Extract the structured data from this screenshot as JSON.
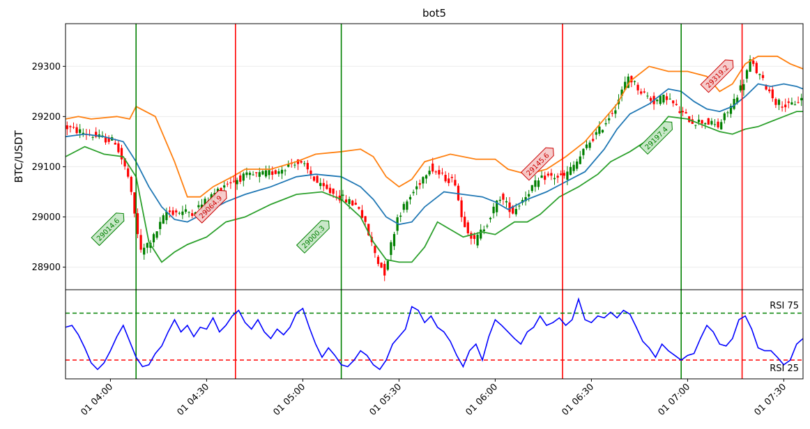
{
  "chart_data": {
    "type": "candlestick",
    "title": "bot5",
    "ylabel": "BTC/USDT",
    "xlabel": "",
    "ylim": [
      28855,
      29385
    ],
    "yticks": [
      28900,
      29000,
      29100,
      29200,
      29300
    ],
    "xlim": [
      0,
      230
    ],
    "grid": true,
    "xticks": [
      {
        "label": "01 04:00",
        "x": 14
      },
      {
        "label": "01 04:30",
        "x": 44
      },
      {
        "label": "01 05:00",
        "x": 74
      },
      {
        "label": "01 05:30",
        "x": 104
      },
      {
        "label": "01 06:00",
        "x": 134
      },
      {
        "label": "01 06:30",
        "x": 164
      },
      {
        "label": "01 07:00",
        "x": 194
      },
      {
        "label": "01 07:30",
        "x": 224
      }
    ],
    "candle_count": 230,
    "price_path": [
      [
        0,
        29180
      ],
      [
        10,
        29160
      ],
      [
        16,
        29150
      ],
      [
        20,
        29080
      ],
      [
        24,
        28930
      ],
      [
        28,
        28960
      ],
      [
        32,
        29010
      ],
      [
        40,
        29010
      ],
      [
        44,
        29030
      ],
      [
        50,
        29065
      ],
      [
        56,
        29080
      ],
      [
        62,
        29085
      ],
      [
        66,
        29090
      ],
      [
        72,
        29110
      ],
      [
        75,
        29100
      ],
      [
        80,
        29060
      ],
      [
        86,
        29040
      ],
      [
        92,
        29020
      ],
      [
        98,
        28910
      ],
      [
        100,
        28890
      ],
      [
        104,
        29000
      ],
      [
        108,
        29040
      ],
      [
        114,
        29100
      ],
      [
        118,
        29080
      ],
      [
        122,
        29070
      ],
      [
        124,
        29000
      ],
      [
        128,
        28950
      ],
      [
        132,
        28990
      ],
      [
        136,
        29040
      ],
      [
        140,
        29010
      ],
      [
        146,
        29060
      ],
      [
        150,
        29080
      ],
      [
        156,
        29080
      ],
      [
        160,
        29110
      ],
      [
        164,
        29150
      ],
      [
        168,
        29180
      ],
      [
        172,
        29220
      ],
      [
        176,
        29280
      ],
      [
        180,
        29250
      ],
      [
        184,
        29230
      ],
      [
        188,
        29240
      ],
      [
        192,
        29210
      ],
      [
        196,
        29190
      ],
      [
        200,
        29190
      ],
      [
        204,
        29180
      ],
      [
        208,
        29220
      ],
      [
        212,
        29270
      ],
      [
        214,
        29310
      ],
      [
        218,
        29270
      ],
      [
        222,
        29230
      ],
      [
        226,
        29220
      ],
      [
        230,
        29235
      ]
    ],
    "series": [
      {
        "name": "",
        "color": "#ff7f0e",
        "role": "upper band",
        "points": [
          [
            0,
            29195
          ],
          [
            4,
            29200
          ],
          [
            8,
            29195
          ],
          [
            16,
            29200
          ],
          [
            20,
            29195
          ],
          [
            22,
            29220
          ],
          [
            28,
            29200
          ],
          [
            34,
            29110
          ],
          [
            38,
            29040
          ],
          [
            42,
            29040
          ],
          [
            46,
            29060
          ],
          [
            52,
            29080
          ],
          [
            56,
            29095
          ],
          [
            64,
            29095
          ],
          [
            72,
            29110
          ],
          [
            78,
            29125
          ],
          [
            86,
            29130
          ],
          [
            92,
            29135
          ],
          [
            96,
            29120
          ],
          [
            100,
            29080
          ],
          [
            104,
            29060
          ],
          [
            108,
            29075
          ],
          [
            112,
            29110
          ],
          [
            120,
            29125
          ],
          [
            128,
            29115
          ],
          [
            134,
            29115
          ],
          [
            138,
            29095
          ],
          [
            144,
            29085
          ],
          [
            150,
            29095
          ],
          [
            156,
            29120
          ],
          [
            162,
            29150
          ],
          [
            168,
            29195
          ],
          [
            172,
            29225
          ],
          [
            176,
            29270
          ],
          [
            182,
            29300
          ],
          [
            188,
            29290
          ],
          [
            194,
            29290
          ],
          [
            200,
            29280
          ],
          [
            204,
            29250
          ],
          [
            208,
            29265
          ],
          [
            212,
            29305
          ],
          [
            216,
            29320
          ],
          [
            222,
            29320
          ],
          [
            226,
            29305
          ],
          [
            230,
            29295
          ]
        ]
      },
      {
        "name": "",
        "color": "#1f77b4",
        "role": "middle band",
        "points": [
          [
            0,
            29160
          ],
          [
            6,
            29165
          ],
          [
            12,
            29160
          ],
          [
            18,
            29150
          ],
          [
            22,
            29110
          ],
          [
            26,
            29060
          ],
          [
            30,
            29020
          ],
          [
            34,
            28995
          ],
          [
            38,
            28990
          ],
          [
            44,
            29010
          ],
          [
            50,
            29030
          ],
          [
            56,
            29045
          ],
          [
            64,
            29060
          ],
          [
            72,
            29080
          ],
          [
            78,
            29085
          ],
          [
            86,
            29080
          ],
          [
            92,
            29060
          ],
          [
            96,
            29035
          ],
          [
            100,
            29000
          ],
          [
            104,
            28985
          ],
          [
            108,
            28990
          ],
          [
            112,
            29020
          ],
          [
            118,
            29050
          ],
          [
            124,
            29045
          ],
          [
            130,
            29040
          ],
          [
            134,
            29030
          ],
          [
            138,
            29015
          ],
          [
            144,
            29035
          ],
          [
            150,
            29050
          ],
          [
            156,
            29070
          ],
          [
            162,
            29090
          ],
          [
            168,
            29135
          ],
          [
            172,
            29175
          ],
          [
            176,
            29205
          ],
          [
            182,
            29225
          ],
          [
            188,
            29255
          ],
          [
            192,
            29250
          ],
          [
            196,
            29230
          ],
          [
            200,
            29215
          ],
          [
            204,
            29210
          ],
          [
            208,
            29220
          ],
          [
            212,
            29240
          ],
          [
            216,
            29265
          ],
          [
            220,
            29260
          ],
          [
            224,
            29265
          ],
          [
            228,
            29260
          ],
          [
            230,
            29255
          ]
        ]
      },
      {
        "name": "",
        "color": "#2ca02c",
        "role": "lower band",
        "points": [
          [
            0,
            29120
          ],
          [
            6,
            29140
          ],
          [
            12,
            29125
          ],
          [
            18,
            29120
          ],
          [
            22,
            29080
          ],
          [
            26,
            28950
          ],
          [
            30,
            28910
          ],
          [
            34,
            28930
          ],
          [
            38,
            28945
          ],
          [
            44,
            28960
          ],
          [
            50,
            28990
          ],
          [
            56,
            29000
          ],
          [
            64,
            29025
          ],
          [
            72,
            29045
          ],
          [
            80,
            29050
          ],
          [
            86,
            29035
          ],
          [
            92,
            29000
          ],
          [
            96,
            28950
          ],
          [
            100,
            28915
          ],
          [
            104,
            28910
          ],
          [
            108,
            28910
          ],
          [
            112,
            28940
          ],
          [
            116,
            28990
          ],
          [
            120,
            28975
          ],
          [
            124,
            28960
          ],
          [
            130,
            28970
          ],
          [
            134,
            28965
          ],
          [
            140,
            28990
          ],
          [
            144,
            28990
          ],
          [
            148,
            29005
          ],
          [
            154,
            29040
          ],
          [
            160,
            29060
          ],
          [
            166,
            29085
          ],
          [
            170,
            29110
          ],
          [
            176,
            29130
          ],
          [
            182,
            29155
          ],
          [
            188,
            29200
          ],
          [
            194,
            29195
          ],
          [
            200,
            29180
          ],
          [
            204,
            29170
          ],
          [
            208,
            29165
          ],
          [
            212,
            29175
          ],
          [
            216,
            29180
          ],
          [
            220,
            29190
          ],
          [
            224,
            29200
          ],
          [
            228,
            29210
          ],
          [
            230,
            29210
          ]
        ]
      }
    ],
    "vlines": [
      {
        "x": 22,
        "color": "#008000",
        "kind": "entry"
      },
      {
        "x": 53,
        "color": "#ff0000",
        "kind": "exit"
      },
      {
        "x": 86,
        "color": "#008000",
        "kind": "entry"
      },
      {
        "x": 155,
        "color": "#ff0000",
        "kind": "exit"
      },
      {
        "x": 192,
        "color": "#008000",
        "kind": "entry"
      },
      {
        "x": 211,
        "color": "#ff0000",
        "kind": "exit"
      }
    ],
    "annotations": [
      {
        "text": "29014.6",
        "x": 17,
        "y": 29000,
        "type": "buy"
      },
      {
        "text": "29064.9",
        "x": 49,
        "y": 29045,
        "type": "sell"
      },
      {
        "text": "29000.3",
        "x": 81,
        "y": 28985,
        "type": "buy"
      },
      {
        "text": "29145.6",
        "x": 151,
        "y": 29130,
        "type": "sell"
      },
      {
        "text": "29197.4",
        "x": 188,
        "y": 29182,
        "type": "buy"
      },
      {
        "text": "29319.2",
        "x": 207,
        "y": 29305,
        "type": "sell"
      }
    ],
    "rsi": {
      "upper_label": "RSI 75",
      "lower_label": "RSI 25",
      "upper_level": 75,
      "lower_level": 25,
      "ylim": [
        5,
        100
      ],
      "color": "#0000ff",
      "points": [
        [
          0,
          60
        ],
        [
          2,
          62
        ],
        [
          4,
          52
        ],
        [
          6,
          38
        ],
        [
          8,
          22
        ],
        [
          10,
          15
        ],
        [
          12,
          22
        ],
        [
          14,
          35
        ],
        [
          16,
          50
        ],
        [
          18,
          62
        ],
        [
          20,
          45
        ],
        [
          22,
          28
        ],
        [
          24,
          18
        ],
        [
          26,
          20
        ],
        [
          28,
          32
        ],
        [
          30,
          40
        ],
        [
          32,
          55
        ],
        [
          34,
          68
        ],
        [
          36,
          55
        ],
        [
          38,
          62
        ],
        [
          40,
          50
        ],
        [
          42,
          60
        ],
        [
          44,
          58
        ],
        [
          46,
          70
        ],
        [
          48,
          55
        ],
        [
          50,
          62
        ],
        [
          52,
          72
        ],
        [
          54,
          78
        ],
        [
          56,
          65
        ],
        [
          58,
          58
        ],
        [
          60,
          68
        ],
        [
          62,
          55
        ],
        [
          64,
          48
        ],
        [
          66,
          58
        ],
        [
          68,
          52
        ],
        [
          70,
          60
        ],
        [
          72,
          75
        ],
        [
          74,
          80
        ],
        [
          76,
          60
        ],
        [
          78,
          42
        ],
        [
          80,
          28
        ],
        [
          82,
          38
        ],
        [
          84,
          30
        ],
        [
          86,
          20
        ],
        [
          88,
          18
        ],
        [
          90,
          25
        ],
        [
          92,
          35
        ],
        [
          94,
          30
        ],
        [
          96,
          20
        ],
        [
          98,
          15
        ],
        [
          100,
          25
        ],
        [
          102,
          42
        ],
        [
          104,
          50
        ],
        [
          106,
          58
        ],
        [
          108,
          82
        ],
        [
          110,
          78
        ],
        [
          112,
          65
        ],
        [
          114,
          72
        ],
        [
          116,
          60
        ],
        [
          118,
          55
        ],
        [
          120,
          45
        ],
        [
          122,
          30
        ],
        [
          124,
          18
        ],
        [
          126,
          35
        ],
        [
          128,
          42
        ],
        [
          130,
          25
        ],
        [
          132,
          50
        ],
        [
          134,
          68
        ],
        [
          136,
          62
        ],
        [
          138,
          55
        ],
        [
          140,
          48
        ],
        [
          142,
          42
        ],
        [
          144,
          55
        ],
        [
          146,
          60
        ],
        [
          148,
          72
        ],
        [
          150,
          62
        ],
        [
          152,
          65
        ],
        [
          154,
          70
        ],
        [
          156,
          62
        ],
        [
          158,
          68
        ],
        [
          160,
          90
        ],
        [
          162,
          68
        ],
        [
          164,
          65
        ],
        [
          166,
          72
        ],
        [
          168,
          70
        ],
        [
          170,
          76
        ],
        [
          172,
          70
        ],
        [
          174,
          78
        ],
        [
          176,
          74
        ],
        [
          178,
          60
        ],
        [
          180,
          45
        ],
        [
          182,
          38
        ],
        [
          184,
          28
        ],
        [
          186,
          42
        ],
        [
          188,
          35
        ],
        [
          190,
          30
        ],
        [
          192,
          25
        ],
        [
          194,
          30
        ],
        [
          196,
          32
        ],
        [
          198,
          48
        ],
        [
          200,
          62
        ],
        [
          202,
          55
        ],
        [
          204,
          42
        ],
        [
          206,
          40
        ],
        [
          208,
          48
        ],
        [
          210,
          68
        ],
        [
          212,
          72
        ],
        [
          214,
          58
        ],
        [
          216,
          38
        ],
        [
          218,
          35
        ],
        [
          220,
          35
        ],
        [
          222,
          28
        ],
        [
          224,
          20
        ],
        [
          226,
          25
        ],
        [
          228,
          42
        ],
        [
          230,
          48
        ]
      ]
    }
  }
}
